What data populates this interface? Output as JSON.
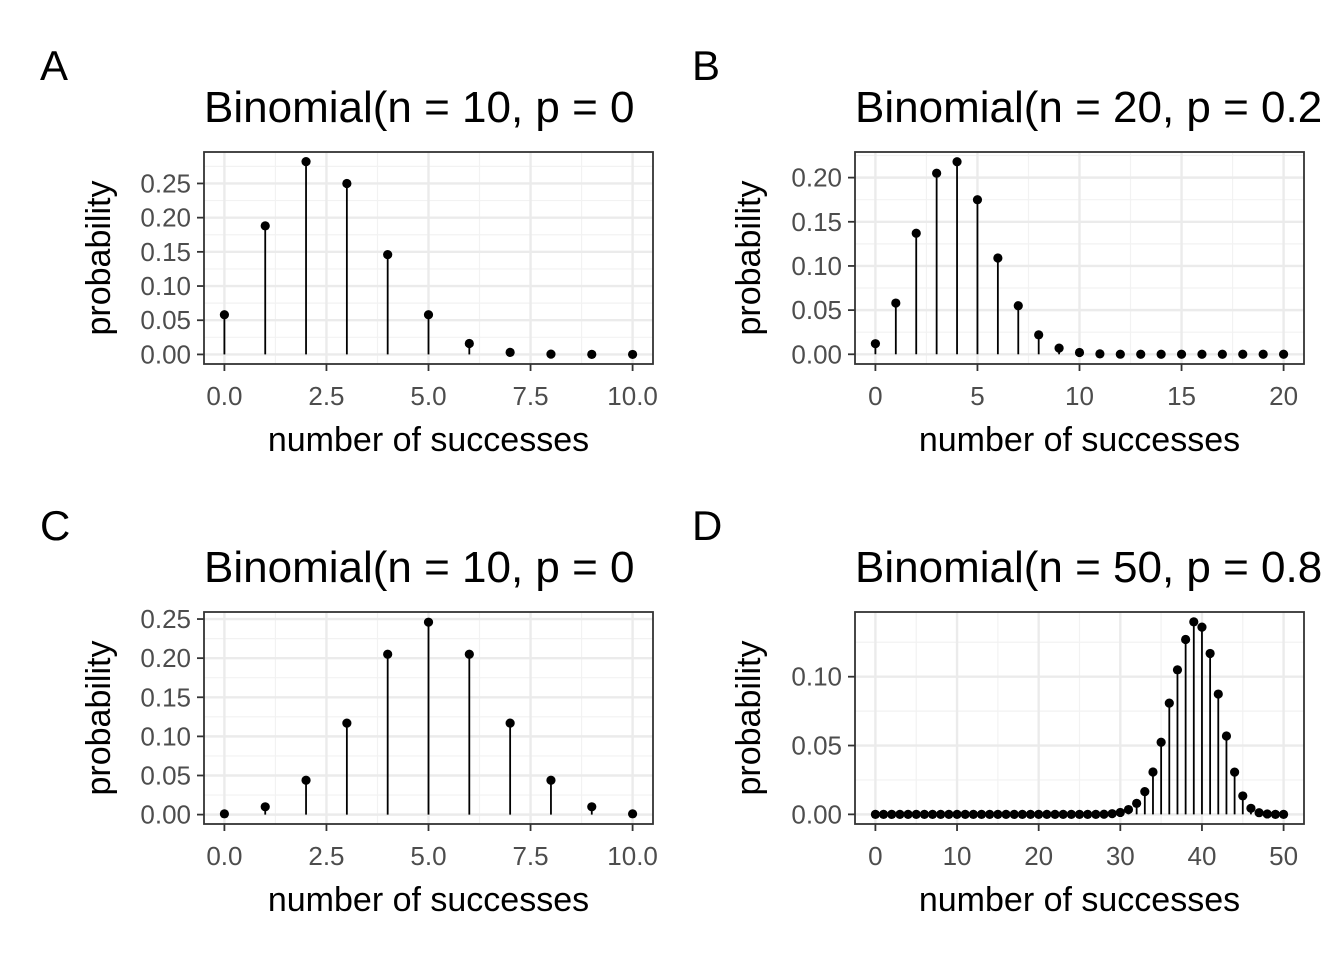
{
  "chart_data": [
    {
      "type": "scatter",
      "panel_label": "A",
      "title": "Binomial(n = 10, p = 0",
      "xlabel": "number of successes",
      "ylabel": "probability",
      "xlim": [
        -0.5,
        10.5
      ],
      "ylim": [
        -0.014,
        0.296
      ],
      "grid": true,
      "x_ticks": [
        0,
        2.5,
        5,
        7.5,
        10
      ],
      "x_tick_labels": [
        "0.0",
        "2.5",
        "5.0",
        "7.5",
        "10.0"
      ],
      "y_ticks": [
        0,
        0.05,
        0.1,
        0.15,
        0.2,
        0.25
      ],
      "y_tick_labels": [
        "0.00",
        "0.05",
        "0.10",
        "0.15",
        "0.20",
        "0.25"
      ],
      "x": [
        0,
        1,
        2,
        3,
        4,
        5,
        6,
        7,
        8,
        9,
        10
      ],
      "y": [
        0.058,
        0.188,
        0.282,
        0.25,
        0.146,
        0.058,
        0.016,
        0.003,
        0.0004,
        3e-05,
        1e-06
      ]
    },
    {
      "type": "scatter",
      "panel_label": "B",
      "title": "Binomial(n = 20, p = 0.2",
      "xlabel": "number of successes",
      "ylabel": "probability",
      "xlim": [
        -1,
        21
      ],
      "ylim": [
        -0.011,
        0.229
      ],
      "grid": true,
      "x_ticks": [
        0,
        5,
        10,
        15,
        20
      ],
      "x_tick_labels": [
        "0",
        "5",
        "10",
        "15",
        "20"
      ],
      "y_ticks": [
        0,
        0.05,
        0.1,
        0.15,
        0.2
      ],
      "y_tick_labels": [
        "0.00",
        "0.05",
        "0.10",
        "0.15",
        "0.20"
      ],
      "x": [
        0,
        1,
        2,
        3,
        4,
        5,
        6,
        7,
        8,
        9,
        10,
        11,
        12,
        13,
        14,
        15,
        16,
        17,
        18,
        19,
        20
      ],
      "y": [
        0.012,
        0.058,
        0.137,
        0.205,
        0.218,
        0.175,
        0.109,
        0.055,
        0.022,
        0.007,
        0.002,
        0.0005,
        0.0001,
        0,
        0,
        0,
        0,
        0,
        0,
        0,
        0
      ]
    },
    {
      "type": "scatter",
      "panel_label": "C",
      "title": "Binomial(n = 10, p = 0",
      "xlabel": "number of successes",
      "ylabel": "probability",
      "xlim": [
        -0.5,
        10.5
      ],
      "ylim": [
        -0.012,
        0.259
      ],
      "grid": true,
      "x_ticks": [
        0,
        2.5,
        5,
        7.5,
        10
      ],
      "x_tick_labels": [
        "0.0",
        "2.5",
        "5.0",
        "7.5",
        "10.0"
      ],
      "y_ticks": [
        0,
        0.05,
        0.1,
        0.15,
        0.2,
        0.25
      ],
      "y_tick_labels": [
        "0.00",
        "0.05",
        "0.10",
        "0.15",
        "0.20",
        "0.25"
      ],
      "x": [
        0,
        1,
        2,
        3,
        4,
        5,
        6,
        7,
        8,
        9,
        10
      ],
      "y": [
        0.001,
        0.01,
        0.044,
        0.117,
        0.205,
        0.246,
        0.205,
        0.117,
        0.044,
        0.01,
        0.001
      ]
    },
    {
      "type": "scatter",
      "panel_label": "D",
      "title": "Binomial(n = 50, p = 0.8",
      "xlabel": "number of successes",
      "ylabel": "probability",
      "xlim": [
        -2.5,
        52.5
      ],
      "ylim": [
        -0.007,
        0.147
      ],
      "grid": true,
      "x_ticks": [
        0,
        10,
        20,
        30,
        40,
        50
      ],
      "x_tick_labels": [
        "0",
        "10",
        "20",
        "30",
        "40",
        "50"
      ],
      "y_ticks": [
        0,
        0.05,
        0.1
      ],
      "y_tick_labels": [
        "0.00",
        "0.05",
        "0.10"
      ],
      "x": [
        0,
        1,
        2,
        3,
        4,
        5,
        6,
        7,
        8,
        9,
        10,
        11,
        12,
        13,
        14,
        15,
        16,
        17,
        18,
        19,
        20,
        21,
        22,
        23,
        24,
        25,
        26,
        27,
        28,
        29,
        30,
        31,
        32,
        33,
        34,
        35,
        36,
        37,
        38,
        39,
        40,
        41,
        42,
        43,
        44,
        45,
        46,
        47,
        48,
        49,
        50
      ],
      "y": [
        0,
        0,
        0,
        0,
        0,
        0,
        0,
        0,
        0,
        0,
        0,
        0,
        0,
        0,
        0,
        0,
        0,
        0,
        0,
        0,
        0,
        0,
        0,
        0,
        0,
        0,
        0,
        0,
        0.0001,
        0.0005,
        0.0014,
        0.0035,
        0.008,
        0.0165,
        0.0308,
        0.0524,
        0.0808,
        0.105,
        0.127,
        0.1398,
        0.136,
        0.1169,
        0.0874,
        0.0569,
        0.0307,
        0.0134,
        0.0044,
        0.0012,
        0.0003,
        0.0,
        0.0
      ]
    }
  ]
}
